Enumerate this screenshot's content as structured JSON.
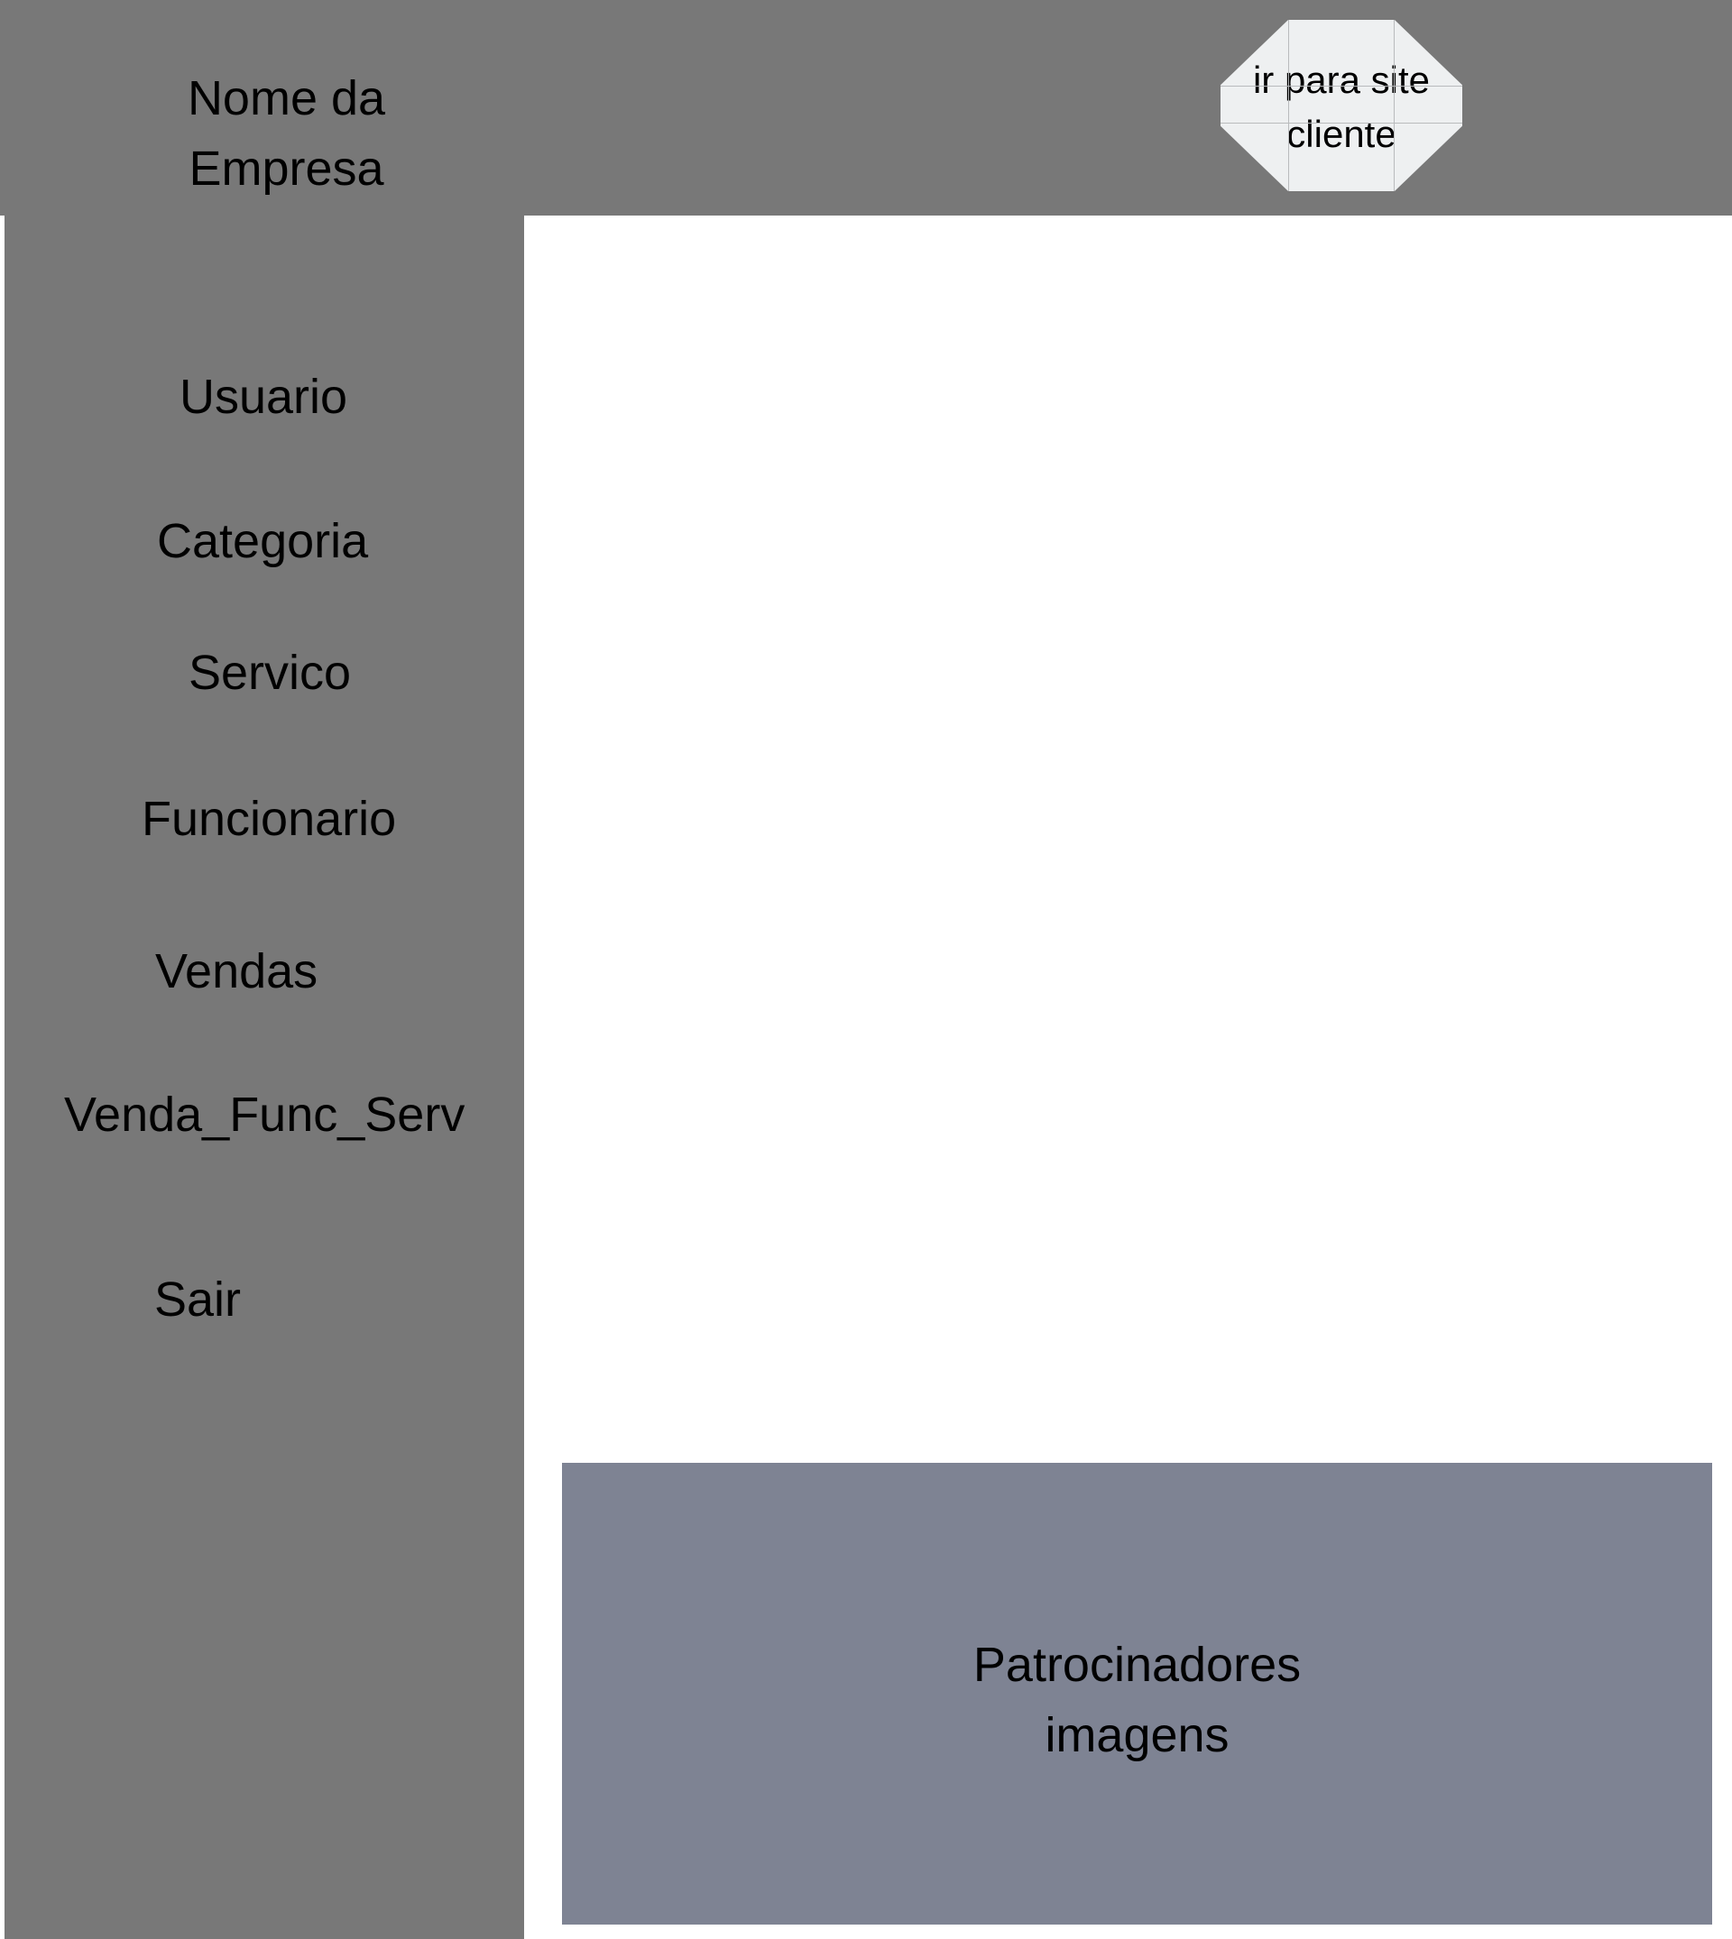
{
  "header": {
    "company_name_line1": "Nome da",
    "company_name_line2": "Empresa",
    "site_button_line1": "ir para site",
    "site_button_line2": "cliente"
  },
  "sidebar": {
    "items": [
      {
        "label": "Usuario"
      },
      {
        "label": "Categoria"
      },
      {
        "label": "Servico"
      },
      {
        "label": "Funcionario"
      },
      {
        "label": "Vendas"
      },
      {
        "label": "Venda_Func_Serv"
      },
      {
        "label": "Sair"
      }
    ]
  },
  "main": {
    "sponsor_line1": "Patrocinadores",
    "sponsor_line2": "imagens"
  },
  "colors": {
    "header_background": "#787878",
    "sidebar_background": "#787878",
    "button_background": "#eef0f1",
    "sponsor_background": "#7e8393"
  }
}
